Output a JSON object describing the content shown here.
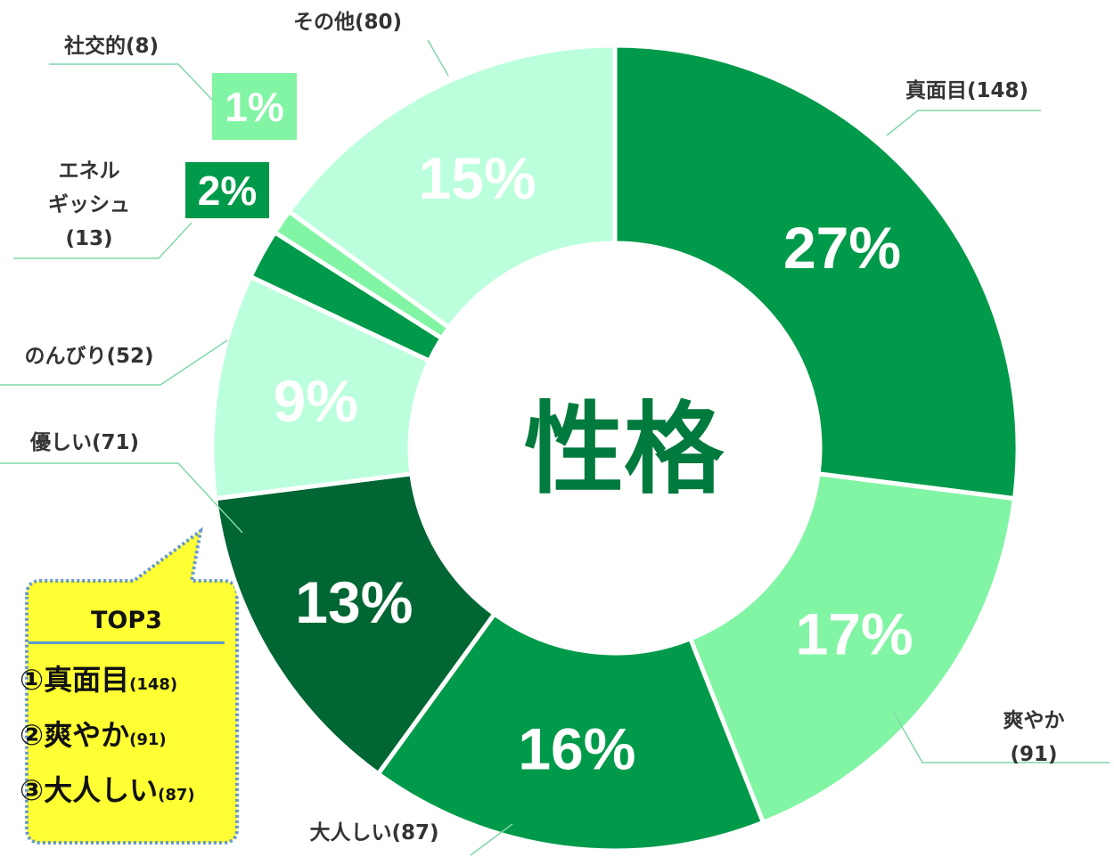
{
  "chart_data": {
    "type": "donut",
    "center_label": "性格",
    "categories": [
      "真面目(148)",
      "爽やか(91)",
      "大人しい(87)",
      "優しい(71)",
      "のんびり(52)",
      "エネル\nギッシュ\n(13)",
      "社交的(8)",
      "その他(80)"
    ],
    "values": [
      27,
      17,
      16,
      13,
      9,
      2,
      1,
      15
    ],
    "value_labels": [
      "27%",
      "17%",
      "16%",
      "13%",
      "9%",
      "2%",
      "1%",
      "15%"
    ],
    "colors": [
      "#009a4a",
      "#82f5a5",
      "#009a4a",
      "#006633",
      "#bbffdd",
      "#009a4a",
      "#82f5a5",
      "#bbffdd"
    ],
    "callout": {
      "title": "TOP3",
      "items": [
        {
          "name": "①真面目",
          "count": "(148)"
        },
        {
          "name": "②爽やか",
          "count": "(91)"
        },
        {
          "name": "③大人しい",
          "count": "(87)"
        }
      ]
    }
  }
}
